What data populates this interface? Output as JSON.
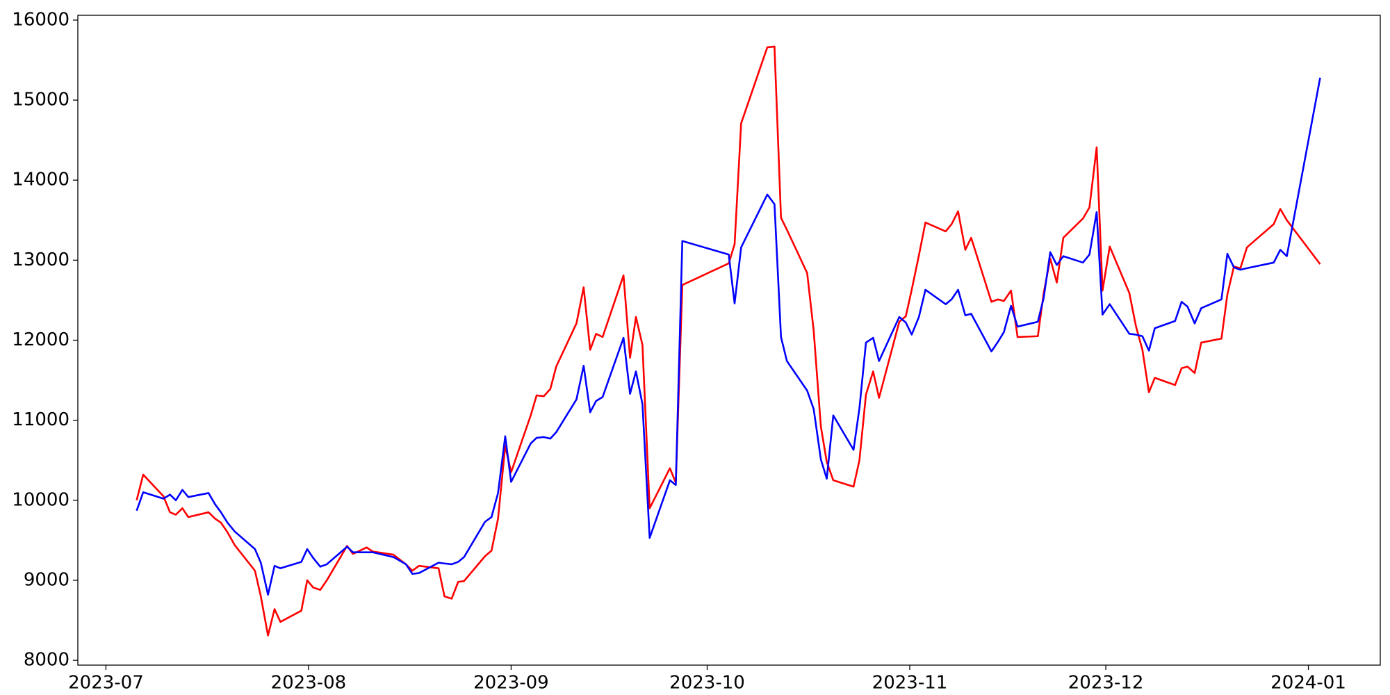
{
  "chart_data": {
    "type": "line",
    "x": [
      4.7,
      5.7,
      8.8,
      9.8,
      10.7,
      11.7,
      12.6,
      15.7,
      16.7,
      17.6,
      18.6,
      19.7,
      22.8,
      23.7,
      24.8,
      25.8,
      26.7,
      29.9,
      30.8,
      31.7,
      32.8,
      33.8,
      36.9,
      37.8,
      39.9,
      40.8,
      44.0,
      45.9,
      46.9,
      47.9,
      50.9,
      51.8,
      52.9,
      53.9,
      54.8,
      58.0,
      59.0,
      60.0,
      61.1,
      62.0,
      65.0,
      65.9,
      67.0,
      68.0,
      68.9,
      72.0,
      73.1,
      74.1,
      75.0,
      76.0,
      79.2,
      80.2,
      81.1,
      82.1,
      83.2,
      86.3,
      87.2,
      88.2,
      95.3,
      96.2,
      97.2,
      101.2,
      102.3,
      103.3,
      104.2,
      107.3,
      108.3,
      109.4,
      110.3,
      111.3,
      114.4,
      115.3,
      116.3,
      117.4,
      118.3,
      121.4,
      122.4,
      123.3,
      124.4,
      125.4,
      128.5,
      129.4,
      130.4,
      131.5,
      132.4,
      135.5,
      136.5,
      137.4,
      138.5,
      139.5,
      142.6,
      143.5,
      144.5,
      145.5,
      146.5,
      149.5,
      150.5,
      151.6,
      152.5,
      153.6,
      156.6,
      157.6,
      158.6,
      159.6,
      160.5,
      163.6,
      164.6,
      165.5,
      166.6,
      167.6,
      170.7,
      171.6,
      172.6,
      173.6,
      174.6,
      178.7,
      179.7,
      180.7,
      185.8
    ],
    "series": [
      {
        "color": "#ff0000",
        "values": [
          10000,
          10320,
          10050,
          9850,
          9820,
          9900,
          9790,
          9850,
          9770,
          9720,
          9600,
          9440,
          9120,
          8800,
          8310,
          8640,
          8480,
          8620,
          9000,
          8910,
          8880,
          9000,
          9430,
          9330,
          9410,
          9360,
          9320,
          9200,
          9120,
          9180,
          9150,
          8800,
          8770,
          8980,
          8990,
          9300,
          9370,
          9770,
          10680,
          10350,
          11060,
          11310,
          11300,
          11390,
          11670,
          12210,
          12660,
          11880,
          12080,
          12040,
          12810,
          11780,
          12290,
          11940,
          9900,
          10400,
          10220,
          12690,
          12960,
          13200,
          14710,
          15660,
          15670,
          13530,
          13380,
          12840,
          12120,
          10920,
          10480,
          10250,
          10170,
          10500,
          11320,
          11610,
          11280,
          12230,
          12300,
          12630,
          13060,
          13470,
          13360,
          13450,
          13610,
          13130,
          13280,
          12480,
          12510,
          12490,
          12620,
          12040,
          12050,
          12590,
          13020,
          12720,
          13280,
          13520,
          13660,
          14410,
          12620,
          13170,
          12590,
          12180,
          11880,
          11350,
          11530,
          11440,
          11650,
          11670,
          11590,
          11970,
          12020,
          12570,
          12920,
          12900,
          13160,
          13450,
          13640,
          13500,
          12950
        ]
      },
      {
        "color": "#0000ff",
        "values": [
          9870,
          10100,
          10020,
          10070,
          10000,
          10130,
          10040,
          10090,
          9950,
          9850,
          9720,
          9610,
          9390,
          9220,
          8820,
          9180,
          9150,
          9230,
          9390,
          9280,
          9170,
          9200,
          9420,
          9350,
          9350,
          9350,
          9290,
          9200,
          9080,
          9090,
          9220,
          9210,
          9200,
          9230,
          9290,
          9730,
          9790,
          10090,
          10800,
          10230,
          10710,
          10780,
          10790,
          10770,
          10850,
          11260,
          11680,
          11100,
          11240,
          11290,
          12030,
          11330,
          11610,
          11200,
          9530,
          10250,
          10190,
          13240,
          13070,
          12460,
          13160,
          13820,
          13700,
          12040,
          11740,
          11370,
          11140,
          10510,
          10270,
          11060,
          10630,
          11150,
          11970,
          12030,
          11740,
          12290,
          12220,
          12070,
          12290,
          12630,
          12450,
          12510,
          12630,
          12310,
          12330,
          11860,
          11980,
          12100,
          12430,
          12170,
          12230,
          12530,
          13100,
          12940,
          13050,
          12970,
          13070,
          13600,
          12320,
          12450,
          12080,
          12070,
          12050,
          11870,
          12150,
          12240,
          12480,
          12420,
          12210,
          12400,
          12510,
          13080,
          12910,
          12880,
          12900,
          12970,
          13130,
          13050,
          15280
        ]
      }
    ],
    "xlim": [
      -4.3,
      195
    ],
    "xticks": [
      {
        "value": 0,
        "label": "2023-07"
      },
      {
        "value": 31,
        "label": "2023-08"
      },
      {
        "value": 62,
        "label": "2023-09"
      },
      {
        "value": 92,
        "label": "2023-10"
      },
      {
        "value": 123,
        "label": "2023-11"
      },
      {
        "value": 153,
        "label": "2023-12"
      },
      {
        "value": 184,
        "label": "2024-01"
      }
    ],
    "ylim": [
      7940,
      16060
    ],
    "yticks": [
      8000,
      9000,
      10000,
      11000,
      12000,
      13000,
      14000,
      15000,
      16000
    ],
    "grid": false
  }
}
